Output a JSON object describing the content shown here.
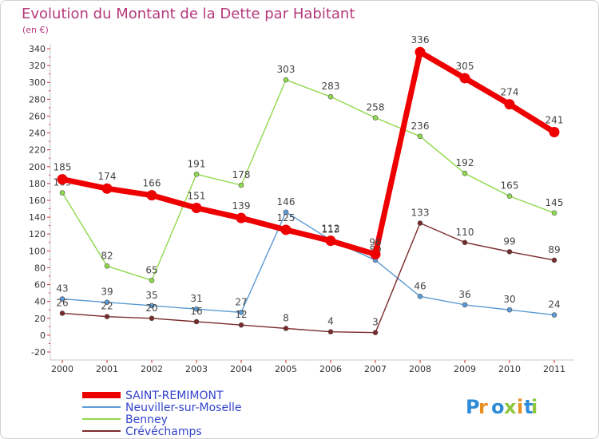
{
  "chart_data": {
    "type": "line",
    "title": "Evolution du Montant de la Dette par Habitant",
    "subtitle": "(en €)",
    "x": [
      "2000",
      "2001",
      "2002",
      "2003",
      "2004",
      "2005",
      "2006",
      "2007",
      "2008",
      "2009",
      "2010",
      "2011"
    ],
    "yticks": [
      "-20",
      "0",
      "20",
      "40",
      "60",
      "80",
      "100",
      "120",
      "140",
      "160",
      "180",
      "200",
      "220",
      "240",
      "260",
      "280",
      "300",
      "320",
      "340"
    ],
    "ylim": [
      -20,
      340
    ],
    "grid": false,
    "legend_position": "bottom-left",
    "series": [
      {
        "name": "SAINT-REMIMONT",
        "color": "#ee0000",
        "values": [
          185,
          174,
          166,
          151,
          139,
          125,
          112,
          96,
          336,
          305,
          274,
          241
        ],
        "labels": [
          "185",
          "174",
          "166",
          "151",
          "139",
          "125",
          "112",
          "96",
          "336",
          "305",
          "274",
          "241"
        ]
      },
      {
        "name": "Neuviller-sur-Moselle",
        "color": "#5b9bd5",
        "values": [
          43,
          39,
          35,
          31,
          27,
          146,
          113,
          89,
          46,
          36,
          30,
          24
        ],
        "labels": [
          "43",
          "39",
          "35",
          "31",
          "27",
          "146",
          "113",
          "89",
          "46",
          "36",
          "30",
          "24"
        ]
      },
      {
        "name": "Benney",
        "color": "#8fd94c",
        "values": [
          169,
          82,
          65,
          191,
          178,
          303,
          283,
          258,
          236,
          192,
          165,
          145
        ],
        "labels": [
          "169",
          "82",
          "65",
          "191",
          "178",
          "303",
          "283",
          "258",
          "236",
          "192",
          "165",
          "145"
        ]
      },
      {
        "name": "Crévéchamps",
        "color": "#7a2a2a",
        "values": [
          26,
          22,
          20,
          16,
          12,
          8,
          4,
          3,
          133,
          110,
          99,
          89
        ],
        "labels": [
          "26",
          "22",
          "20",
          "16",
          "12",
          "8",
          "4",
          "3",
          "133",
          "110",
          "99",
          "89"
        ]
      }
    ]
  },
  "logo": {
    "text": "Proxiti"
  }
}
